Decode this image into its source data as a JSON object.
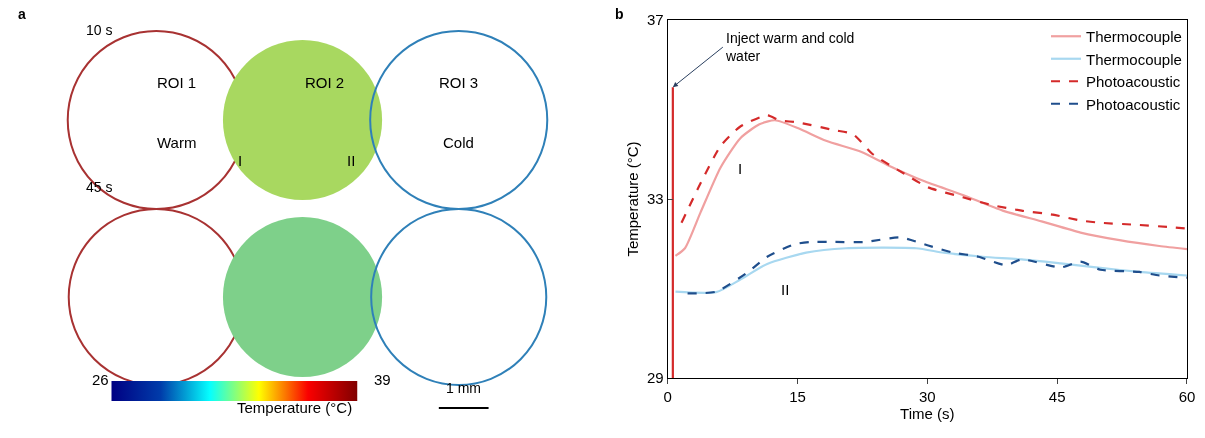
{
  "chart_data": [
    {
      "type": "other",
      "title": "a",
      "annotations": [
        "10 s",
        "ROI 1",
        "Warm",
        "ROI 2",
        "I",
        "II",
        "ROI 3",
        "Cold",
        "45 s",
        "26",
        "39",
        "Temperature (°C)",
        "1 mm"
      ]
    },
    {
      "type": "line",
      "title": "b",
      "xlabel": "Time (s)",
      "ylabel": "Temperature (°C)",
      "xlim": [
        0,
        60
      ],
      "xticks": [
        0,
        15,
        30,
        45,
        60
      ],
      "ylim": [
        29,
        37
      ],
      "yticks": [
        29,
        33,
        37
      ],
      "legend": "top right",
      "series": [
        {
          "name": "Thermocouple",
          "color": "#f0a0a0",
          "line_style": "solid",
          "x": [
            0.9,
            2,
            3.8,
            6.1,
            8.4,
            10.6,
            12.4,
            15.1,
            18.3,
            22.4,
            25.5,
            29.6,
            34.1,
            38.7,
            43.2,
            47.7,
            52.2,
            56.8,
            60
          ],
          "values": [
            31.73,
            31.9,
            32.7,
            33.7,
            34.36,
            34.67,
            34.76,
            34.58,
            34.3,
            34.05,
            33.75,
            33.4,
            33.09,
            32.74,
            32.5,
            32.25,
            32.08,
            31.95,
            31.88
          ]
        },
        {
          "name": "Thermocouple",
          "color": "#a8d8f0",
          "line_style": "solid",
          "x": [
            0.9,
            5.6,
            8.4,
            11.5,
            16,
            20.6,
            28.7,
            31.9,
            36.4,
            40.9,
            45.4,
            50,
            54.5,
            60
          ],
          "values": [
            30.93,
            30.92,
            31.2,
            31.55,
            31.8,
            31.9,
            31.9,
            31.8,
            31.71,
            31.65,
            31.56,
            31.46,
            31.37,
            31.29
          ]
        },
        {
          "name": "Photoacoustic",
          "color": "#d42a2a",
          "line_style": "dashed",
          "x": [
            1.6,
            3.8,
            6.1,
            8.4,
            11.5,
            12.9,
            15.1,
            19.2,
            21.4,
            23.7,
            27.3,
            30.1,
            34.1,
            37.3,
            40.9,
            44.5,
            47.7,
            49.9,
            54.5,
            58.1,
            60
          ],
          "values": [
            32.47,
            33.35,
            34.18,
            34.62,
            34.87,
            34.76,
            34.71,
            34.54,
            34.45,
            34.0,
            33.57,
            33.26,
            33.04,
            32.87,
            32.74,
            32.65,
            32.52,
            32.47,
            32.42,
            32.37,
            32.34
          ]
        },
        {
          "name": "Photoacoustic",
          "color": "#1f4e8c",
          "line_style": "dashed",
          "x": [
            2.3,
            5.6,
            9.3,
            11.5,
            14.7,
            16.5,
            19.2,
            22.8,
            26.9,
            30.1,
            32.8,
            35.9,
            39.1,
            40.9,
            45.4,
            47.7,
            50,
            54.5,
            56.8,
            60
          ],
          "values": [
            30.89,
            30.93,
            31.37,
            31.71,
            31.99,
            32.04,
            32.04,
            32.04,
            32.14,
            31.96,
            31.81,
            31.71,
            31.52,
            31.65,
            31.47,
            31.6,
            31.42,
            31.37,
            31.29,
            31.24
          ]
        },
        {
          "color": "#d42a2a",
          "line_style": "solid",
          "x": [
            0.6,
            0.6
          ],
          "values": [
            29,
            35.5
          ]
        }
      ],
      "annotations": [
        {
          "text": "Inject warm and cold water",
          "x": 0.6,
          "y": 35.5
        },
        "I",
        "II"
      ]
    }
  ]
}
